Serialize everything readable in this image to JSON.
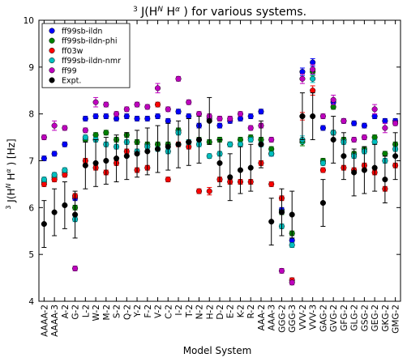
{
  "chart_data": {
    "type": "scatter",
    "title": "³ J(H^N H^α) for various systems.",
    "xlabel": "Model System",
    "ylabel": "³ J(H^N H^α) [Hz]",
    "ylim": [
      4,
      10
    ],
    "yticks": [
      4,
      5,
      6,
      7,
      8,
      9,
      10
    ],
    "legend_position": "top-left",
    "grid": false,
    "categories": [
      "AAAA-2",
      "AAAA-3",
      "A-2",
      "G-2",
      "L-2",
      "W-2",
      "M-2",
      "S-2",
      "Q-2",
      "Y-2",
      "F-2",
      "V-2",
      "C-2",
      "I-2",
      "T-2",
      "N-2",
      "H-2",
      "D-2",
      "E-2",
      "K-2",
      "R-2",
      "AAA-2",
      "AAA-3",
      "GGG-2",
      "GGG-3",
      "VVV-2",
      "VVV-3",
      "GAG-2",
      "GVG-2",
      "GFG-2",
      "GLG-2",
      "GSG-2",
      "GEG-2",
      "GKG-2",
      "GMG-2"
    ],
    "series": [
      {
        "name": "ff99sb-ildn",
        "color": "#0000ff",
        "values": [
          7.05,
          7.15,
          7.35,
          6.2,
          7.9,
          7.95,
          7.95,
          7.9,
          7.95,
          7.9,
          7.9,
          7.95,
          7.85,
          8.05,
          7.95,
          7.75,
          7.9,
          7.75,
          7.85,
          7.9,
          7.95,
          8.05,
          7.15,
          5.95,
          5.3,
          8.9,
          9.1,
          7.7,
          8.25,
          7.85,
          7.8,
          7.75,
          7.95,
          7.85,
          7.85
        ],
        "errors": [
          0.05,
          0.05,
          0.05,
          0.05,
          0.05,
          0.05,
          0.05,
          0.05,
          0.05,
          0.05,
          0.05,
          0.05,
          0.05,
          0.05,
          0.05,
          0.05,
          0.05,
          0.05,
          0.05,
          0.05,
          0.05,
          0.05,
          0.05,
          0.05,
          0.05,
          0.08,
          0.08,
          0.05,
          0.05,
          0.05,
          0.05,
          0.05,
          0.05,
          0.05,
          0.05
        ]
      },
      {
        "name": "ff99sb-ildn-phi",
        "color": "#008000",
        "values": [
          6.55,
          6.65,
          6.75,
          6.0,
          7.45,
          7.55,
          7.6,
          7.45,
          7.55,
          7.4,
          7.35,
          7.35,
          7.35,
          7.65,
          7.4,
          7.45,
          7.4,
          7.45,
          7.35,
          7.45,
          7.5,
          7.45,
          7.25,
          5.9,
          5.45,
          7.4,
          8.9,
          7.0,
          8.15,
          7.45,
          7.15,
          7.25,
          7.5,
          7.15,
          7.35
        ],
        "errors": [
          0.05,
          0.05,
          0.05,
          0.05,
          0.05,
          0.05,
          0.05,
          0.05,
          0.05,
          0.05,
          0.05,
          0.05,
          0.05,
          0.05,
          0.05,
          0.05,
          0.05,
          0.05,
          0.05,
          0.05,
          0.05,
          0.05,
          0.05,
          0.05,
          0.05,
          0.08,
          0.08,
          0.05,
          0.05,
          0.05,
          0.05,
          0.05,
          0.05,
          0.05,
          0.05
        ]
      },
      {
        "name": "ff03w",
        "color": "#ff0000",
        "values": [
          6.5,
          6.6,
          6.7,
          6.25,
          7.0,
          6.85,
          6.75,
          6.95,
          7.2,
          6.8,
          6.85,
          8.2,
          6.6,
          7.35,
          7.3,
          6.35,
          6.35,
          6.6,
          6.55,
          6.55,
          6.55,
          6.95,
          6.5,
          6.2,
          4.45,
          7.95,
          8.5,
          6.8,
          7.6,
          6.85,
          6.8,
          6.9,
          6.75,
          6.4,
          6.9
        ],
        "errors": [
          0.05,
          0.05,
          0.05,
          0.05,
          0.05,
          0.05,
          0.05,
          0.05,
          0.05,
          0.05,
          0.05,
          0.05,
          0.05,
          0.05,
          0.05,
          0.05,
          0.08,
          0.05,
          0.05,
          0.05,
          0.05,
          0.05,
          0.05,
          0.05,
          0.05,
          0.08,
          0.1,
          0.05,
          0.05,
          0.05,
          0.05,
          0.05,
          0.05,
          0.05,
          0.05
        ]
      },
      {
        "name": "ff99sb-ildn-nmr",
        "color": "#00bfbf",
        "values": [
          6.6,
          6.7,
          6.8,
          5.75,
          7.5,
          7.45,
          7.35,
          7.3,
          7.4,
          7.2,
          7.3,
          7.25,
          7.2,
          7.6,
          7.4,
          7.35,
          7.1,
          7.15,
          7.35,
          7.35,
          7.45,
          7.35,
          7.15,
          5.6,
          5.2,
          7.45,
          8.75,
          6.95,
          7.6,
          7.4,
          7.1,
          7.2,
          7.4,
          7.0,
          7.25
        ],
        "errors": [
          0.05,
          0.05,
          0.05,
          0.05,
          0.05,
          0.05,
          0.05,
          0.05,
          0.05,
          0.05,
          0.05,
          0.05,
          0.05,
          0.05,
          0.05,
          0.05,
          0.05,
          0.05,
          0.05,
          0.05,
          0.05,
          0.05,
          0.05,
          0.05,
          0.05,
          0.08,
          0.08,
          0.05,
          0.05,
          0.05,
          0.05,
          0.05,
          0.05,
          0.05,
          0.05
        ]
      },
      {
        "name": "ff99",
        "color": "#bf00bf",
        "values": [
          7.5,
          7.75,
          7.7,
          4.7,
          7.65,
          8.25,
          8.2,
          8.0,
          8.1,
          8.2,
          8.15,
          8.55,
          8.1,
          8.75,
          8.25,
          8.0,
          7.95,
          7.9,
          7.9,
          8.0,
          7.7,
          7.75,
          7.45,
          4.65,
          4.4,
          8.75,
          8.95,
          7.95,
          8.3,
          7.85,
          7.45,
          7.5,
          8.1,
          7.7,
          7.8
        ],
        "errors": [
          0.05,
          0.1,
          0.05,
          0.05,
          0.05,
          0.1,
          0.05,
          0.05,
          0.05,
          0.05,
          0.05,
          0.1,
          0.05,
          0.05,
          0.05,
          0.05,
          0.05,
          0.05,
          0.05,
          0.05,
          0.05,
          0.05,
          0.05,
          0.05,
          0.05,
          0.1,
          0.1,
          0.05,
          0.1,
          0.05,
          0.05,
          0.05,
          0.1,
          0.1,
          0.05
        ]
      },
      {
        "name": "Expt.",
        "color": "#000000",
        "values": [
          5.65,
          5.9,
          6.05,
          5.85,
          6.9,
          6.95,
          7.0,
          7.05,
          7.1,
          7.15,
          7.2,
          7.25,
          7.3,
          7.35,
          7.4,
          7.45,
          7.85,
          6.95,
          6.65,
          6.8,
          6.85,
          7.35,
          5.7,
          5.9,
          5.85,
          7.95,
          7.95,
          6.1,
          7.45,
          7.1,
          6.75,
          6.8,
          6.85,
          6.6,
          7.1
        ],
        "errors": [
          0.5,
          0.5,
          0.5,
          0.5,
          0.5,
          0.5,
          0.5,
          0.5,
          0.5,
          0.5,
          0.5,
          0.5,
          0.5,
          0.5,
          0.5,
          0.5,
          0.5,
          0.5,
          0.5,
          0.5,
          0.5,
          0.5,
          0.5,
          0.5,
          0.5,
          0.5,
          0.5,
          0.5,
          0.5,
          0.5,
          0.5,
          0.5,
          0.5,
          0.5,
          0.5
        ]
      }
    ]
  }
}
